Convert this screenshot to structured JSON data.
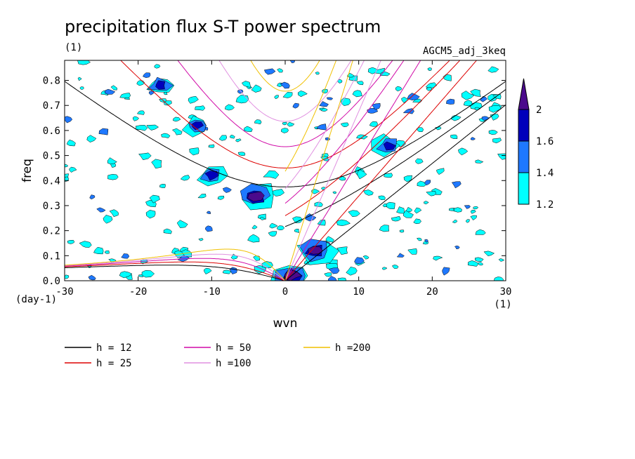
{
  "chart_data": {
    "type": "contour",
    "title": "precipitation flux S-T power spectrum",
    "subtitle_left": "(1)",
    "subtitle_right": "AGCM5_adj_3keq",
    "xlabel": "wvn",
    "ylabel": "freq",
    "xunit": "(1)",
    "yunit": "(day-1)",
    "xlim": [
      -30,
      30
    ],
    "ylim": [
      0,
      0.88
    ],
    "xticks": [
      -30,
      -20,
      -10,
      0,
      10,
      20,
      30
    ],
    "yticks": [
      0.0,
      0.1,
      0.2,
      0.3,
      0.4,
      0.5,
      0.6,
      0.7,
      0.8
    ],
    "colorbar": {
      "levels": [
        "1.2",
        "1.4",
        "1.6",
        "2"
      ],
      "colors": [
        "#00ffff",
        "#1e78ff",
        "#0000bb",
        "#4b0a8c"
      ]
    },
    "dispersion_curves": [
      {
        "label": "h = 12",
        "h": 12,
        "color": "#000000"
      },
      {
        "label": "h = 25",
        "h": 25,
        "color": "#dd0000"
      },
      {
        "label": "h = 50",
        "h": 50,
        "color": "#d10ca8"
      },
      {
        "label": "h =100",
        "h": 100,
        "color": "#e090e0"
      },
      {
        "label": "h =200",
        "h": 200,
        "color": "#f0c000"
      }
    ],
    "high_power_regions": [
      {
        "wvn": -4,
        "freq": 0.34,
        "level": "2"
      },
      {
        "wvn": 4,
        "freq": 0.12,
        "level": "2"
      },
      {
        "wvn": 1,
        "freq": 0.02,
        "level": "2"
      },
      {
        "wvn": -10,
        "freq": 0.42,
        "level": "1.6"
      },
      {
        "wvn": -12,
        "freq": 0.62,
        "level": "1.6"
      },
      {
        "wvn": -17,
        "freq": 0.78,
        "level": "1.6"
      },
      {
        "wvn": 14,
        "freq": 0.54,
        "level": "1.6"
      }
    ]
  }
}
